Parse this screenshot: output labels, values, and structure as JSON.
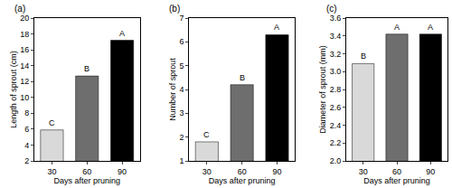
{
  "chart_data": [
    {
      "type": "bar",
      "title": "(a)",
      "x_label": "Days after pruning",
      "y_label": "Length of sprout (cm)",
      "categories": [
        "30",
        "60",
        "90"
      ],
      "values": [
        5.9,
        12.7,
        17.2
      ],
      "colors": [
        "#d9d9d9",
        "#6e6e6e",
        "#000000"
      ],
      "annotations": [
        "C",
        "B",
        "A"
      ],
      "ylim": [
        2,
        20
      ],
      "yticks": [
        2,
        4,
        6,
        8,
        10,
        12,
        14,
        16,
        18,
        20
      ],
      "grid": false
    },
    {
      "type": "bar",
      "title": "(b)",
      "x_label": "Days after pruning",
      "y_label": "Number of sprout",
      "categories": [
        "30",
        "60",
        "90"
      ],
      "values": [
        1.8,
        4.2,
        6.3
      ],
      "colors": [
        "#d9d9d9",
        "#6e6e6e",
        "#000000"
      ],
      "annotations": [
        "C",
        "B",
        "A"
      ],
      "ylim": [
        1,
        7
      ],
      "yticks": [
        1,
        2,
        3,
        4,
        5,
        6,
        7
      ],
      "grid": false
    },
    {
      "type": "bar",
      "title": "(c)",
      "x_label": "Days after pruning",
      "y_label": "Diameter of sprout (mm)",
      "categories": [
        "30",
        "60",
        "90"
      ],
      "values": [
        3.09,
        3.42,
        3.42
      ],
      "colors": [
        "#d9d9d9",
        "#6e6e6e",
        "#000000"
      ],
      "annotations": [
        "B",
        "A",
        "A"
      ],
      "ylim": [
        2.0,
        3.6
      ],
      "yticks": [
        {
          "value": 2.0,
          "label": "2.0"
        },
        {
          "value": 2.2,
          "label": "2.2"
        },
        {
          "value": 2.4,
          "label": "2.4"
        },
        {
          "value": 2.6,
          "label": "2.6"
        },
        {
          "value": 2.8,
          "label": "2.8"
        },
        {
          "value": 3.0,
          "label": "3.0"
        },
        {
          "value": 3.2,
          "label": "3.2"
        },
        {
          "value": 3.4,
          "label": "3.4"
        },
        {
          "value": 3.6,
          "label": "3.6"
        }
      ],
      "grid": false
    }
  ]
}
